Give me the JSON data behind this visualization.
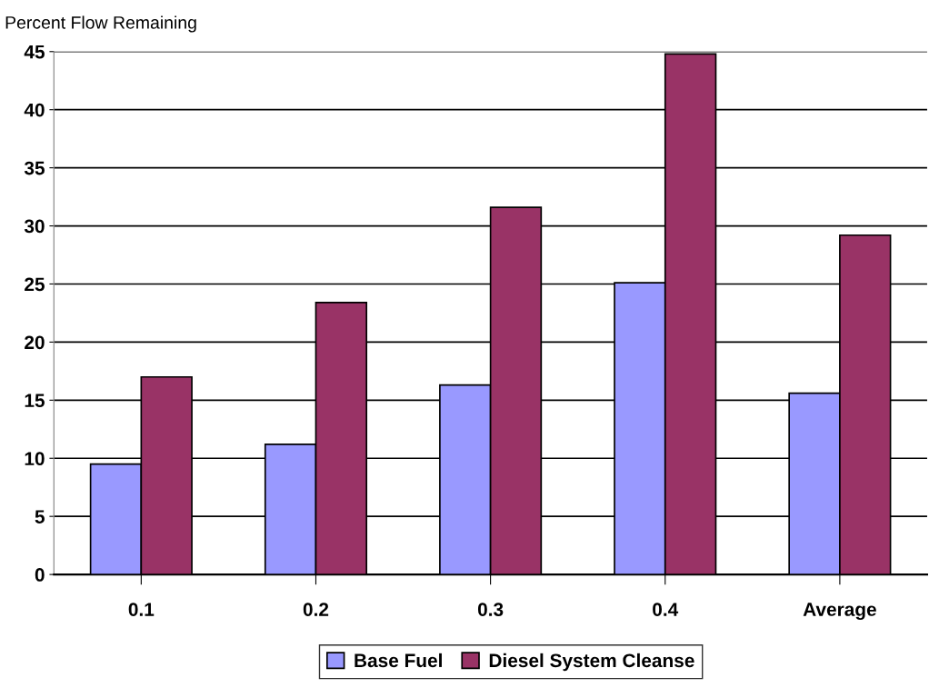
{
  "chart_data": {
    "type": "bar",
    "ylabel": "Percent Flow Remaining",
    "categories": [
      "0.1",
      "0.2",
      "0.3",
      "0.4",
      "Average"
    ],
    "series": [
      {
        "name": "Base Fuel",
        "color": "#9999ff",
        "values": [
          9.5,
          11.2,
          16.3,
          25.1,
          15.6
        ]
      },
      {
        "name": "Diesel System Cleanse",
        "color": "#993366",
        "values": [
          17.0,
          23.4,
          31.6,
          44.8,
          29.2
        ]
      }
    ],
    "ylim": [
      0,
      45
    ],
    "yticks": [
      0,
      5,
      10,
      15,
      20,
      25,
      30,
      35,
      40,
      45
    ],
    "grid": "y",
    "legend": "bottom"
  }
}
